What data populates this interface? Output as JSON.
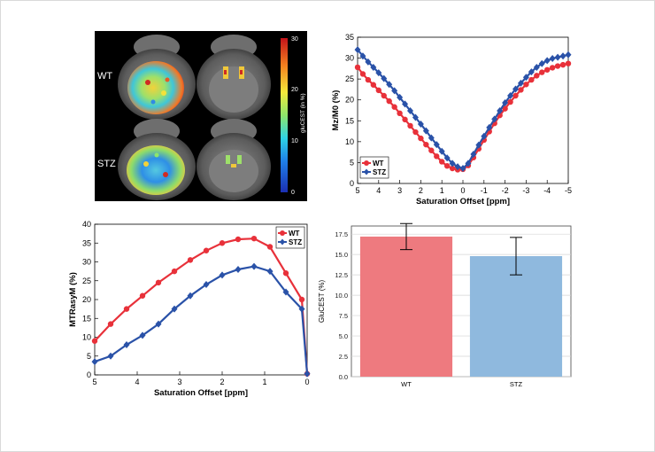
{
  "brain_panel": {
    "row_labels": [
      "WT",
      "STZ"
    ],
    "colorbar": {
      "label": "gluCEST (in %)",
      "ticks": [
        "30",
        "20",
        "10",
        "0"
      ],
      "min": 0,
      "max": 30
    }
  },
  "chart_data": [
    {
      "type": "line",
      "id": "z-spectrum",
      "xlabel": "Saturation Offset [ppm]",
      "ylabel": "Mz/M0 (%)",
      "xlim": [
        5,
        -5
      ],
      "ylim": [
        0,
        35
      ],
      "xticks": [
        "5",
        "4",
        "3",
        "2",
        "1",
        "0",
        "-1",
        "-2",
        "-3",
        "-4",
        "-5"
      ],
      "yticks": [
        "0",
        "5",
        "10",
        "15",
        "20",
        "25",
        "30",
        "35"
      ],
      "legend_placement": "bottom-left",
      "series": [
        {
          "name": "WT",
          "color": "#e8313a",
          "marker": "circle",
          "x": [
            5,
            4.75,
            4.5,
            4.25,
            4,
            3.75,
            3.5,
            3.25,
            3,
            2.75,
            2.5,
            2.25,
            2,
            1.75,
            1.5,
            1.25,
            1,
            0.75,
            0.5,
            0.25,
            0,
            -0.25,
            -0.5,
            -0.75,
            -1,
            -1.25,
            -1.5,
            -1.75,
            -2,
            -2.25,
            -2.5,
            -2.75,
            -3,
            -3.25,
            -3.5,
            -3.75,
            -4,
            -4.25,
            -4.5,
            -4.75,
            -5
          ],
          "y": [
            27.8,
            26.2,
            24.8,
            23.6,
            22.3,
            21,
            19.7,
            18.3,
            16.8,
            15.3,
            13.8,
            12.3,
            10.8,
            9.3,
            7.9,
            6.5,
            5.2,
            4.2,
            3.6,
            3.3,
            3.4,
            4.3,
            6.2,
            8.3,
            10.4,
            12.4,
            14.4,
            16.3,
            17.9,
            19.5,
            21,
            22.4,
            23.7,
            24.8,
            25.8,
            26.6,
            27.2,
            27.7,
            28.1,
            28.4,
            28.7
          ]
        },
        {
          "name": "STZ",
          "color": "#2a52a8",
          "marker": "diamond",
          "x": [
            5,
            4.75,
            4.5,
            4.25,
            4,
            3.75,
            3.5,
            3.25,
            3,
            2.75,
            2.5,
            2.25,
            2,
            1.75,
            1.5,
            1.25,
            1,
            0.75,
            0.5,
            0.25,
            0,
            -0.25,
            -0.5,
            -0.75,
            -1,
            -1.25,
            -1.5,
            -1.75,
            -2,
            -2.25,
            -2.5,
            -2.75,
            -3,
            -3.25,
            -3.5,
            -3.75,
            -4,
            -4.25,
            -4.5,
            -4.75,
            -5
          ],
          "y": [
            32,
            30.5,
            29.1,
            27.8,
            26.5,
            25.1,
            23.7,
            22.2,
            20.6,
            19,
            17.4,
            15.8,
            14.2,
            12.6,
            10.9,
            9.3,
            7.7,
            6.1,
            4.8,
            4,
            3.6,
            4.8,
            7,
            9.2,
            11.3,
            13.4,
            15.4,
            17.4,
            19.3,
            21,
            22.6,
            24,
            25.4,
            26.7,
            27.8,
            28.7,
            29.4,
            29.9,
            30.2,
            30.5,
            30.8
          ]
        }
      ]
    },
    {
      "type": "line",
      "id": "mtr-asym",
      "xlabel": "Saturation Offset [ppm]",
      "ylabel": "MTRasyM (%)",
      "xlim": [
        5,
        0
      ],
      "ylim": [
        0,
        40
      ],
      "xticks": [
        "5",
        "4",
        "3",
        "2",
        "1",
        "0"
      ],
      "yticks": [
        "0",
        "5",
        "10",
        "15",
        "20",
        "25",
        "30",
        "35",
        "40"
      ],
      "legend_placement": "top-right",
      "series": [
        {
          "name": "WT",
          "color": "#e8313a",
          "marker": "circle",
          "x": [
            5,
            4.625,
            4.25,
            3.875,
            3.5,
            3.125,
            2.75,
            2.375,
            2,
            1.625,
            1.25,
            0.875,
            0.5,
            0.125,
            0
          ],
          "y": [
            9,
            13.5,
            17.5,
            21,
            24.5,
            27.5,
            30.5,
            33,
            35,
            36,
            36.2,
            34,
            27,
            20,
            0.3
          ]
        },
        {
          "name": "STZ",
          "color": "#2a52a8",
          "marker": "diamond",
          "x": [
            5,
            4.625,
            4.25,
            3.875,
            3.5,
            3.125,
            2.75,
            2.375,
            2,
            1.625,
            1.25,
            0.875,
            0.5,
            0.125,
            0
          ],
          "y": [
            3.5,
            5,
            8,
            10.5,
            13.5,
            17.5,
            21,
            24,
            26.5,
            28,
            28.8,
            27.5,
            22,
            17.5,
            0.3
          ]
        }
      ]
    },
    {
      "type": "bar",
      "id": "glucest-bars",
      "categories": [
        "WT",
        "STZ"
      ],
      "values": [
        17.2,
        14.8
      ],
      "errors": [
        1.6,
        2.3
      ],
      "colors": [
        "#ee7a7f",
        "#8fb9de"
      ],
      "ylabel": "GluCEST (%)",
      "ylim": [
        0,
        18.5
      ],
      "yticks": [
        "0.0",
        "2.5",
        "5.0",
        "7.5",
        "10.0",
        "12.5",
        "15.0",
        "17.5"
      ],
      "grid": true
    }
  ]
}
